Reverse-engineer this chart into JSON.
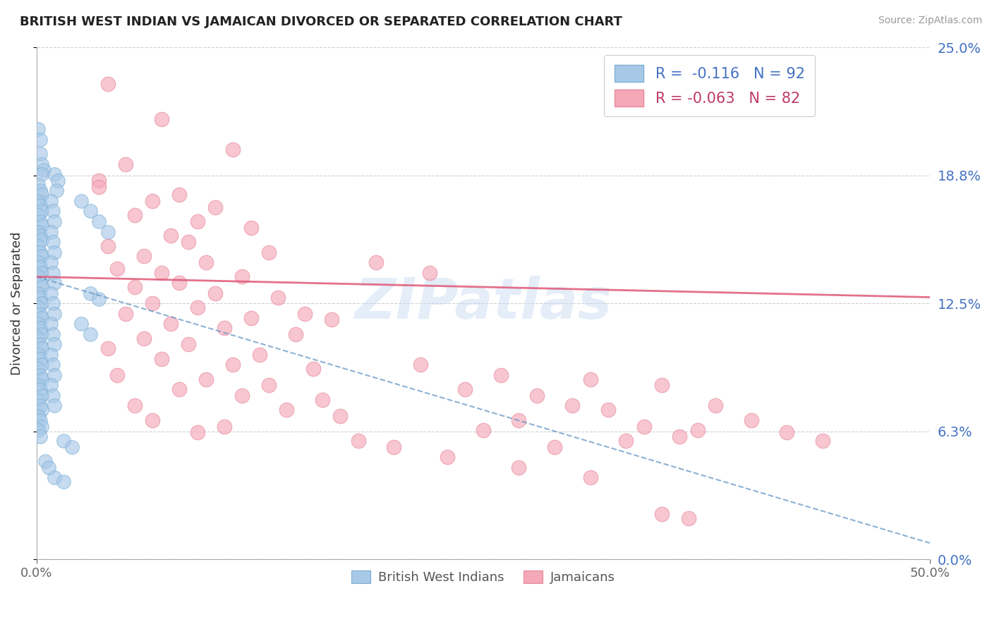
{
  "title": "BRITISH WEST INDIAN VS JAMAICAN DIVORCED OR SEPARATED CORRELATION CHART",
  "source": "Source: ZipAtlas.com",
  "ylabel": "Divorced or Separated",
  "xmin": 0.0,
  "xmax": 0.5,
  "ymin": 0.0,
  "ymax": 0.25,
  "ytick_labels": [
    "0.0%",
    "6.3%",
    "12.5%",
    "18.8%",
    "25.0%"
  ],
  "ytick_values": [
    0.0,
    0.0625,
    0.125,
    0.1875,
    0.25
  ],
  "xtick_labels": [
    "0.0%",
    "50.0%"
  ],
  "xtick_values": [
    0.0,
    0.5
  ],
  "legend_blue_label": "British West Indians",
  "legend_pink_label": "Jamaicans",
  "blue_color": "#a8c8e8",
  "pink_color": "#f4a8b8",
  "blue_edge_color": "#7bafd4",
  "pink_edge_color": "#e8889a",
  "blue_line_color": "#6090c0",
  "pink_line_color": "#e05878",
  "watermark": "ZIPatlas",
  "blue_points": [
    [
      0.001,
      0.21
    ],
    [
      0.002,
      0.205
    ],
    [
      0.002,
      0.198
    ],
    [
      0.003,
      0.193
    ],
    [
      0.004,
      0.19
    ],
    [
      0.003,
      0.188
    ],
    [
      0.001,
      0.183
    ],
    [
      0.002,
      0.18
    ],
    [
      0.003,
      0.178
    ],
    [
      0.001,
      0.175
    ],
    [
      0.002,
      0.173
    ],
    [
      0.003,
      0.17
    ],
    [
      0.001,
      0.168
    ],
    [
      0.002,
      0.165
    ],
    [
      0.003,
      0.163
    ],
    [
      0.001,
      0.16
    ],
    [
      0.002,
      0.158
    ],
    [
      0.003,
      0.156
    ],
    [
      0.001,
      0.153
    ],
    [
      0.002,
      0.15
    ],
    [
      0.003,
      0.148
    ],
    [
      0.001,
      0.145
    ],
    [
      0.002,
      0.143
    ],
    [
      0.003,
      0.14
    ],
    [
      0.001,
      0.138
    ],
    [
      0.002,
      0.135
    ],
    [
      0.003,
      0.133
    ],
    [
      0.001,
      0.13
    ],
    [
      0.002,
      0.128
    ],
    [
      0.003,
      0.125
    ],
    [
      0.001,
      0.123
    ],
    [
      0.002,
      0.12
    ],
    [
      0.003,
      0.118
    ],
    [
      0.001,
      0.115
    ],
    [
      0.002,
      0.113
    ],
    [
      0.003,
      0.11
    ],
    [
      0.001,
      0.108
    ],
    [
      0.002,
      0.105
    ],
    [
      0.003,
      0.103
    ],
    [
      0.001,
      0.1
    ],
    [
      0.002,
      0.098
    ],
    [
      0.003,
      0.095
    ],
    [
      0.001,
      0.093
    ],
    [
      0.002,
      0.09
    ],
    [
      0.003,
      0.088
    ],
    [
      0.001,
      0.085
    ],
    [
      0.002,
      0.083
    ],
    [
      0.003,
      0.08
    ],
    [
      0.001,
      0.078
    ],
    [
      0.002,
      0.075
    ],
    [
      0.003,
      0.073
    ],
    [
      0.001,
      0.07
    ],
    [
      0.002,
      0.068
    ],
    [
      0.003,
      0.065
    ],
    [
      0.001,
      0.063
    ],
    [
      0.002,
      0.06
    ],
    [
      0.01,
      0.188
    ],
    [
      0.012,
      0.185
    ],
    [
      0.011,
      0.18
    ],
    [
      0.008,
      0.175
    ],
    [
      0.009,
      0.17
    ],
    [
      0.01,
      0.165
    ],
    [
      0.008,
      0.16
    ],
    [
      0.009,
      0.155
    ],
    [
      0.01,
      0.15
    ],
    [
      0.008,
      0.145
    ],
    [
      0.009,
      0.14
    ],
    [
      0.01,
      0.135
    ],
    [
      0.008,
      0.13
    ],
    [
      0.009,
      0.125
    ],
    [
      0.01,
      0.12
    ],
    [
      0.008,
      0.115
    ],
    [
      0.009,
      0.11
    ],
    [
      0.01,
      0.105
    ],
    [
      0.008,
      0.1
    ],
    [
      0.009,
      0.095
    ],
    [
      0.01,
      0.09
    ],
    [
      0.008,
      0.085
    ],
    [
      0.009,
      0.08
    ],
    [
      0.01,
      0.075
    ],
    [
      0.025,
      0.175
    ],
    [
      0.03,
      0.17
    ],
    [
      0.025,
      0.115
    ],
    [
      0.03,
      0.11
    ],
    [
      0.015,
      0.058
    ],
    [
      0.02,
      0.055
    ],
    [
      0.01,
      0.04
    ],
    [
      0.015,
      0.038
    ],
    [
      0.005,
      0.048
    ],
    [
      0.007,
      0.045
    ],
    [
      0.035,
      0.165
    ],
    [
      0.04,
      0.16
    ],
    [
      0.03,
      0.13
    ],
    [
      0.035,
      0.127
    ]
  ],
  "pink_points": [
    [
      0.04,
      0.232
    ],
    [
      0.07,
      0.215
    ],
    [
      0.11,
      0.2
    ],
    [
      0.05,
      0.193
    ],
    [
      0.035,
      0.185
    ],
    [
      0.035,
      0.182
    ],
    [
      0.08,
      0.178
    ],
    [
      0.065,
      0.175
    ],
    [
      0.1,
      0.172
    ],
    [
      0.055,
      0.168
    ],
    [
      0.09,
      0.165
    ],
    [
      0.12,
      0.162
    ],
    [
      0.075,
      0.158
    ],
    [
      0.085,
      0.155
    ],
    [
      0.04,
      0.153
    ],
    [
      0.13,
      0.15
    ],
    [
      0.06,
      0.148
    ],
    [
      0.095,
      0.145
    ],
    [
      0.045,
      0.142
    ],
    [
      0.07,
      0.14
    ],
    [
      0.115,
      0.138
    ],
    [
      0.08,
      0.135
    ],
    [
      0.055,
      0.133
    ],
    [
      0.1,
      0.13
    ],
    [
      0.135,
      0.128
    ],
    [
      0.065,
      0.125
    ],
    [
      0.09,
      0.123
    ],
    [
      0.05,
      0.12
    ],
    [
      0.12,
      0.118
    ],
    [
      0.075,
      0.115
    ],
    [
      0.105,
      0.113
    ],
    [
      0.145,
      0.11
    ],
    [
      0.06,
      0.108
    ],
    [
      0.085,
      0.105
    ],
    [
      0.04,
      0.103
    ],
    [
      0.125,
      0.1
    ],
    [
      0.07,
      0.098
    ],
    [
      0.11,
      0.095
    ],
    [
      0.155,
      0.093
    ],
    [
      0.045,
      0.09
    ],
    [
      0.095,
      0.088
    ],
    [
      0.13,
      0.085
    ],
    [
      0.08,
      0.083
    ],
    [
      0.115,
      0.08
    ],
    [
      0.16,
      0.078
    ],
    [
      0.055,
      0.075
    ],
    [
      0.14,
      0.073
    ],
    [
      0.17,
      0.07
    ],
    [
      0.065,
      0.068
    ],
    [
      0.105,
      0.065
    ],
    [
      0.09,
      0.062
    ],
    [
      0.18,
      0.058
    ],
    [
      0.2,
      0.055
    ],
    [
      0.215,
      0.095
    ],
    [
      0.26,
      0.09
    ],
    [
      0.31,
      0.088
    ],
    [
      0.35,
      0.085
    ],
    [
      0.24,
      0.083
    ],
    [
      0.28,
      0.08
    ],
    [
      0.3,
      0.075
    ],
    [
      0.32,
      0.073
    ],
    [
      0.27,
      0.068
    ],
    [
      0.34,
      0.065
    ],
    [
      0.15,
      0.12
    ],
    [
      0.165,
      0.117
    ],
    [
      0.19,
      0.145
    ],
    [
      0.22,
      0.14
    ],
    [
      0.38,
      0.075
    ],
    [
      0.25,
      0.063
    ],
    [
      0.29,
      0.055
    ],
    [
      0.36,
      0.06
    ],
    [
      0.4,
      0.068
    ],
    [
      0.42,
      0.062
    ],
    [
      0.44,
      0.058
    ],
    [
      0.33,
      0.058
    ],
    [
      0.37,
      0.063
    ],
    [
      0.23,
      0.05
    ],
    [
      0.27,
      0.045
    ],
    [
      0.31,
      0.04
    ],
    [
      0.35,
      0.022
    ],
    [
      0.365,
      0.02
    ]
  ]
}
